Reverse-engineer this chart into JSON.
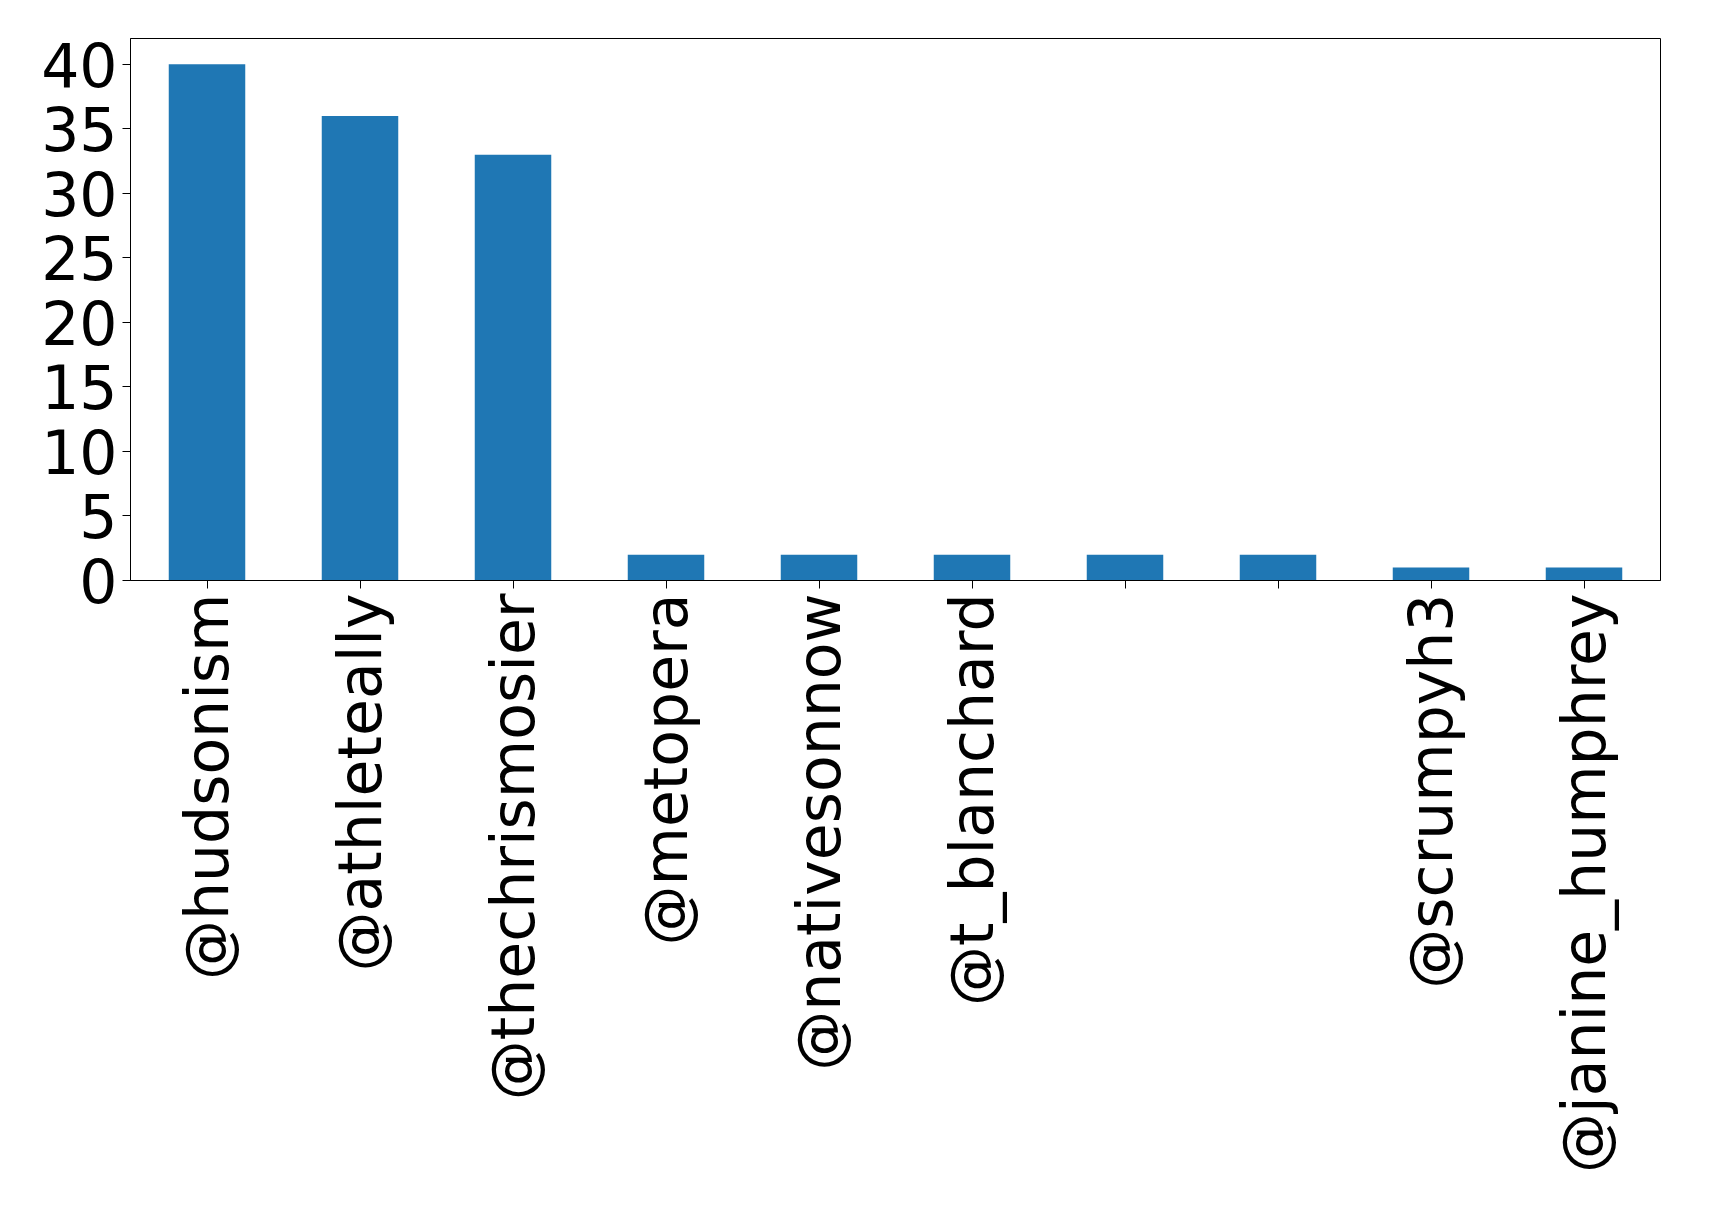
{
  "chart_data": {
    "type": "bar",
    "categories": [
      "@hudsonism",
      "@athleteally",
      "@thechrismosier",
      "@metopera",
      "@nativesonnow",
      "@t_blanchard",
      null,
      null,
      "@scrumpyh3",
      "@janine_humphrey"
    ],
    "values": [
      40,
      36,
      33,
      2,
      2,
      2,
      2,
      2,
      1,
      1
    ],
    "color": "#1f77b4",
    "ylim": [
      0,
      42
    ],
    "yticks": [
      0,
      5,
      10,
      15,
      20,
      25,
      30,
      35,
      40
    ],
    "grid": false
  }
}
